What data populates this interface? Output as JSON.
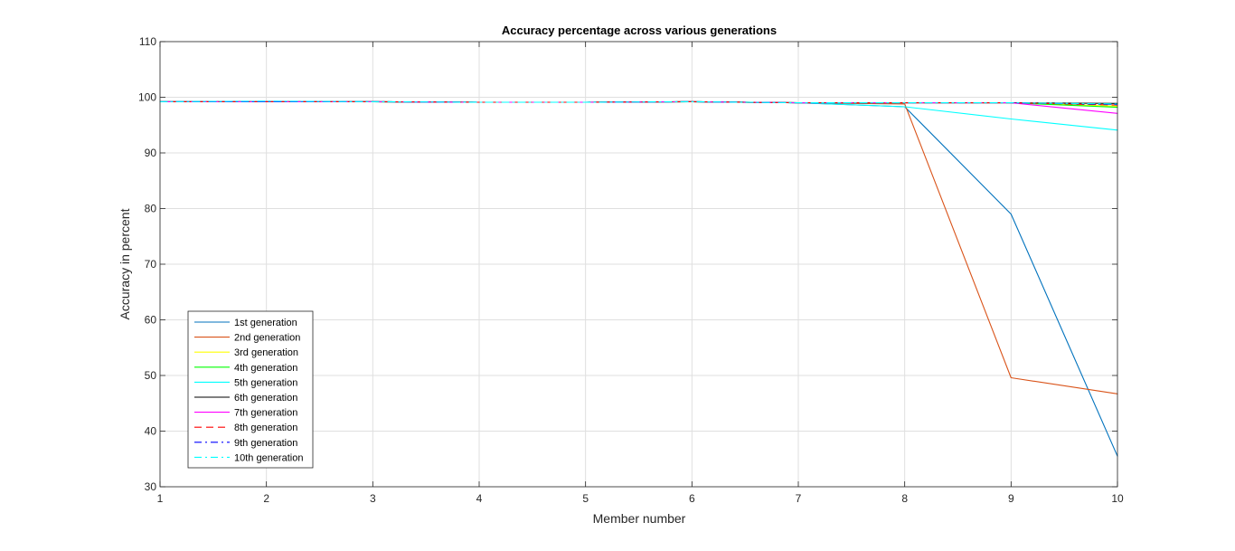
{
  "chart_data": {
    "type": "line",
    "title": "Accuracy percentage across various generations",
    "xlabel": "Member number",
    "ylabel": "Accuracy in percent",
    "xlim": [
      1,
      10
    ],
    "ylim": [
      30,
      110
    ],
    "x": [
      1,
      2,
      3,
      4,
      5,
      6,
      7,
      8,
      9,
      10
    ],
    "xticks": [
      "1",
      "2",
      "3",
      "4",
      "5",
      "6",
      "7",
      "8",
      "9",
      "10"
    ],
    "yticks": [
      "30",
      "40",
      "50",
      "60",
      "70",
      "80",
      "90",
      "100",
      "110"
    ],
    "grid": true,
    "legend_position": "bottom-left",
    "series": [
      {
        "name": "1st generation",
        "color": "#0072BD",
        "style": "solid",
        "values": [
          99.2,
          99.2,
          99.2,
          99.1,
          99.1,
          99.2,
          99.0,
          98.3,
          79.0,
          35.5
        ]
      },
      {
        "name": "2nd generation",
        "color": "#D95319",
        "style": "solid",
        "values": [
          99.2,
          99.2,
          99.2,
          99.1,
          99.1,
          99.2,
          99.0,
          98.8,
          49.6,
          46.7
        ]
      },
      {
        "name": "3rd generation",
        "color": "#FFFF00",
        "style": "solid",
        "values": [
          99.2,
          99.2,
          99.2,
          99.1,
          99.1,
          99.2,
          99.0,
          99.0,
          99.0,
          98.4
        ]
      },
      {
        "name": "4th generation",
        "color": "#00FF00",
        "style": "solid",
        "values": [
          99.2,
          99.2,
          99.2,
          99.1,
          99.1,
          99.2,
          99.0,
          99.0,
          99.0,
          98.2
        ]
      },
      {
        "name": "5th generation",
        "color": "#00FFFF",
        "style": "solid",
        "values": [
          99.2,
          99.2,
          99.2,
          99.1,
          99.1,
          99.2,
          99.0,
          98.3,
          96.1,
          94.1
        ]
      },
      {
        "name": "6th generation",
        "color": "#000000",
        "style": "solid",
        "values": [
          99.2,
          99.2,
          99.2,
          99.1,
          99.1,
          99.2,
          99.0,
          99.0,
          99.0,
          98.9
        ]
      },
      {
        "name": "7th generation",
        "color": "#FF00FF",
        "style": "solid",
        "values": [
          99.2,
          99.2,
          99.2,
          99.1,
          99.1,
          99.2,
          99.0,
          99.0,
          99.0,
          97.1
        ]
      },
      {
        "name": "8th generation",
        "color": "#FF0000",
        "style": "dashed",
        "values": [
          99.2,
          99.2,
          99.2,
          99.1,
          99.1,
          99.2,
          99.0,
          99.0,
          99.0,
          98.6
        ]
      },
      {
        "name": "9th generation",
        "color": "#0000FF",
        "style": "dashdot",
        "values": [
          99.2,
          99.2,
          99.2,
          99.1,
          99.1,
          99.2,
          99.0,
          99.0,
          99.0,
          98.7
        ]
      },
      {
        "name": "10th generation",
        "color": "#00FFFF",
        "style": "dashdot",
        "values": [
          99.2,
          99.3,
          99.2,
          99.1,
          99.1,
          99.2,
          99.0,
          99.0,
          99.0,
          98.8
        ]
      }
    ]
  }
}
